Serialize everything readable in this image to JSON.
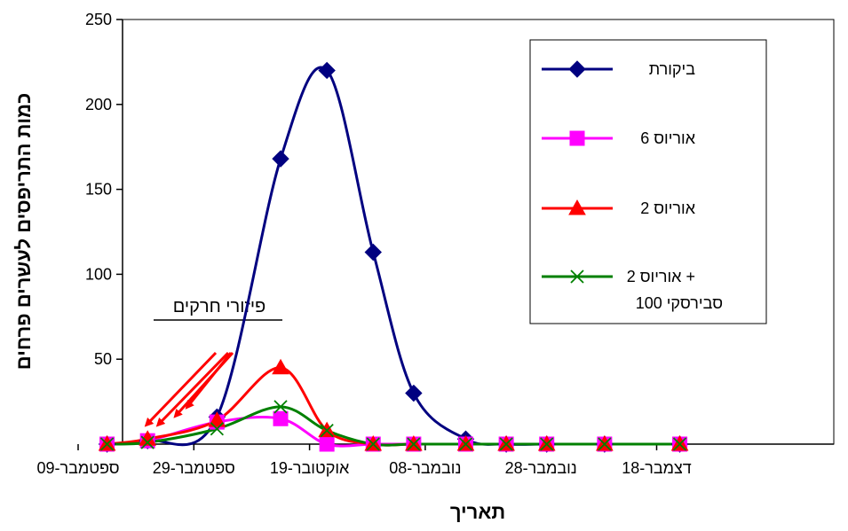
{
  "chart_data": {
    "type": "line",
    "title": "",
    "xlabel": "תאריך",
    "ylabel": "כמות התריפסים לעשרים פרחים",
    "x_tick_labels": [
      "09-ספטמבר",
      "29-ספטמבר",
      "19-אוקטובר",
      "08-נובמבר",
      "28-נובמבר",
      "18-דצמבר"
    ],
    "x_ticks_day": [
      0,
      20,
      40,
      60,
      80,
      100
    ],
    "xlim_day": [
      0,
      110
    ],
    "ylim": [
      0,
      250
    ],
    "y_ticks": [
      0,
      50,
      100,
      150,
      200,
      250
    ],
    "grid": false,
    "legend_position": "top-right",
    "series": [
      {
        "name": "ביקורת",
        "color": "#000080",
        "marker": "diamond",
        "x_day": [
          5,
          12,
          24,
          35,
          43,
          51,
          58,
          67,
          74,
          81,
          91,
          104
        ],
        "values": [
          0,
          2,
          16,
          168,
          220,
          113,
          30,
          3,
          0,
          0,
          0,
          0
        ]
      },
      {
        "name": "אוריוס 6",
        "color": "#ff00ff",
        "marker": "square",
        "x_day": [
          5,
          12,
          24,
          35,
          43,
          51,
          58,
          67,
          74,
          81,
          91,
          104
        ],
        "values": [
          0,
          2,
          13,
          15,
          0,
          0,
          0,
          0,
          0,
          0,
          0,
          0
        ]
      },
      {
        "name": "אוריוס 2",
        "color": "#ff0000",
        "marker": "triangle",
        "x_day": [
          5,
          12,
          24,
          35,
          43,
          51,
          58,
          67,
          74,
          81,
          91,
          104
        ],
        "values": [
          0,
          3,
          14,
          45,
          8,
          0,
          0,
          0,
          0,
          0,
          0,
          0
        ]
      },
      {
        "name": "אוריוס 2 +",
        "name_line2": "סבירסקי 100",
        "color": "#008000",
        "marker": "x",
        "x_day": [
          5,
          12,
          24,
          35,
          43,
          51,
          58,
          67,
          74,
          81,
          91,
          104
        ],
        "values": [
          0,
          1,
          9,
          22,
          8,
          0,
          0,
          0,
          0,
          0,
          0,
          0
        ]
      }
    ],
    "annotations": [
      {
        "text": "פיזורי חרקים",
        "underline": true,
        "arrows": 4,
        "arrow_color": "#ff0000",
        "arrow_targets_day": [
          12,
          14,
          17,
          19
        ]
      }
    ]
  }
}
